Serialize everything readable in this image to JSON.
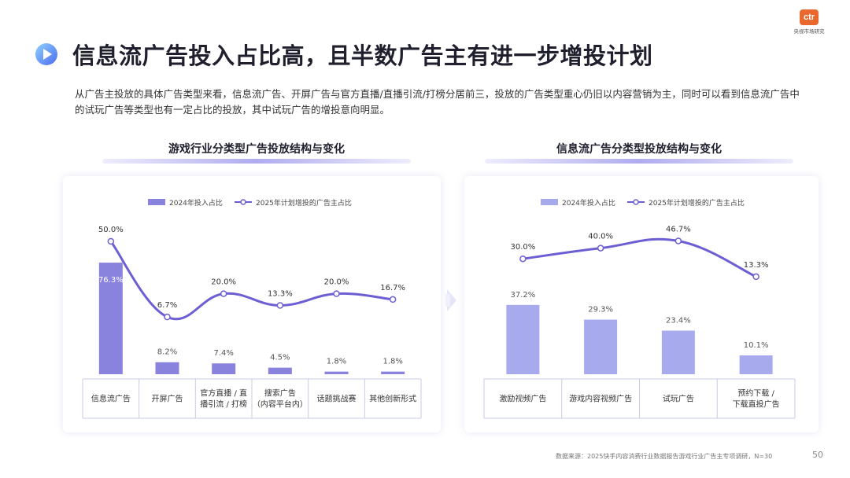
{
  "page": {
    "title": "信息流广告投入占比高，且半数广告主有进一步增投计划",
    "intro": "从广告主投放的具体广告类型来看，信息流广告、开屏广告与官方直播/直播引流/打榜分居前三，投放的广告类型重心仍旧以内容营销为主，同时可以看到信息流广告中的试玩广告等类型也有一定占比的投放，其中试玩广告的增投意向明显。",
    "logo_mark": "ctr",
    "logo_text": "央视市场研究",
    "source": "数据来源：2025快手内容消费行业数据报告游戏行业广告主专项调研，N=30",
    "page_number": "50",
    "colors": {
      "bar_left": "#8a83dd",
      "bar_right": "#a8aaee",
      "line": "#6c5fd4",
      "title_icon": "#5b8ef0"
    },
    "icons": [
      "play-icon",
      "arrow-right-icon"
    ]
  },
  "chart_data": [
    {
      "type": "bar",
      "title": "游戏行业分类型广告投放结构与变化",
      "categories": [
        "信息流广告",
        "开屏广告",
        "官方直播 / 直播引流 / 打榜",
        "搜索广告（内容平台内）",
        "话题挑战赛",
        "其他创新形式"
      ],
      "category_lines": [
        [
          "信息流广告"
        ],
        [
          "开屏广告"
        ],
        [
          "官方直播 / 直",
          "播引流 / 打榜"
        ],
        [
          "搜索广告",
          "（内容平台内）"
        ],
        [
          "话题挑战赛"
        ],
        [
          "其他创新形式"
        ]
      ],
      "series": [
        {
          "name": "2024年投入占比",
          "type": "bar",
          "values": [
            76.3,
            8.2,
            7.4,
            4.5,
            1.8,
            1.8
          ],
          "labels": [
            "76.3%",
            "8.2%",
            "7.4%",
            "4.5%",
            "1.8%",
            "1.8%"
          ]
        },
        {
          "name": "2025年计划增投的广告主占比",
          "type": "line",
          "values": [
            50.0,
            6.7,
            20.0,
            13.3,
            20.0,
            16.7
          ],
          "labels": [
            "50.0%",
            "6.7%",
            "20.0%",
            "13.3%",
            "20.0%",
            "16.7%"
          ]
        }
      ],
      "legend": "top"
    },
    {
      "type": "bar",
      "title": "信息流广告分类型投放结构与变化",
      "categories": [
        "激励视频广告",
        "游戏内容视频广告",
        "试玩广告",
        "预约下载 / 下载直投广告"
      ],
      "category_lines": [
        [
          "激励视频广告"
        ],
        [
          "游戏内容视频广告"
        ],
        [
          "试玩广告"
        ],
        [
          "预约下载 /",
          "下载直投广告"
        ]
      ],
      "series": [
        {
          "name": "2024年投入占比",
          "type": "bar",
          "values": [
            37.2,
            29.3,
            23.4,
            10.1
          ],
          "labels": [
            "37.2%",
            "29.3%",
            "23.4%",
            "10.1%"
          ]
        },
        {
          "name": "2025年计划增投的广告主占比",
          "type": "line",
          "values": [
            30.0,
            40.0,
            46.7,
            13.3
          ],
          "labels": [
            "30.0%",
            "40.0%",
            "46.7%",
            "13.3%"
          ]
        }
      ],
      "legend": "top"
    }
  ]
}
